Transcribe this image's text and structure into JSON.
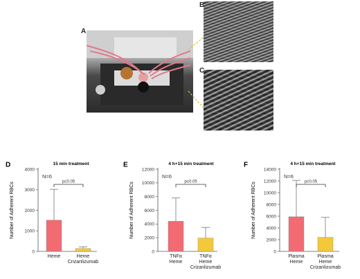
{
  "panels": {
    "a": "A",
    "b": "B",
    "c": "C"
  },
  "chart_data": [
    {
      "panel": "D",
      "type": "bar",
      "title": "15 min treatment",
      "ylabel": "Number of Adherent RBCs",
      "n_label": "N=6",
      "sig_label": "p≤0.05",
      "ylim": [
        0,
        4000
      ],
      "yticks": [
        0,
        1000,
        2000,
        3000,
        4000
      ],
      "categories": [
        [
          "Heme"
        ],
        [
          "Heme",
          "Crizanlizumab"
        ]
      ],
      "values": [
        1520,
        140
      ],
      "error_upper": [
        3020,
        220
      ],
      "colors": [
        "#f26b73",
        "#f3c83a"
      ]
    },
    {
      "panel": "E",
      "type": "bar",
      "title": "4 h+15 min treatment",
      "ylabel": "Number of Adherent RBCs",
      "n_label": "N=6",
      "sig_label": "p≤0.05",
      "ylim": [
        0,
        12000
      ],
      "yticks": [
        0,
        2000,
        4000,
        6000,
        8000,
        10000,
        12000
      ],
      "categories": [
        [
          "TNFα",
          "Heme"
        ],
        [
          "TNFα",
          "Heme",
          "Crizanlizumab"
        ]
      ],
      "values": [
        4400,
        1950
      ],
      "error_upper": [
        7800,
        3500
      ],
      "colors": [
        "#f26b73",
        "#f3c83a"
      ]
    },
    {
      "panel": "F",
      "type": "bar",
      "title": "4 h+15 min treatment",
      "ylabel": "Number of Adherent RBCs",
      "n_label": "N=6",
      "sig_label": "p≤0.05",
      "ylim": [
        0,
        14000
      ],
      "yticks": [
        0,
        2000,
        4000,
        6000,
        8000,
        10000,
        12000,
        14000
      ],
      "categories": [
        [
          "Plasma",
          "Heme"
        ],
        [
          "Plasma",
          "Heme",
          "Crizanlizumab"
        ]
      ],
      "values": [
        5900,
        2400
      ],
      "error_upper": [
        12100,
        5800
      ],
      "colors": [
        "#f26b73",
        "#f3c83a"
      ]
    }
  ]
}
